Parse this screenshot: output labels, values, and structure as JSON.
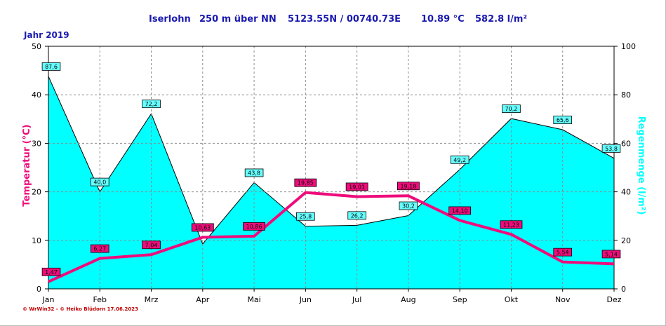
{
  "header": {
    "station": "Iserlohn",
    "elevation": "250 m über NN",
    "coordinates": "5123.55N / 00740.73E",
    "avg_temperature": "10.89 °C",
    "total_precipitation": "582.8 l/m²"
  },
  "year_label": "Jahr  2019",
  "footer": "© WrWin32  -  © Heiko Blüdorn  17.06.2023",
  "colors": {
    "temperature": "#ee0c7c",
    "precipitation_fill": "#00ffff",
    "header_text": "#1a1ab0",
    "temp_label_bg": "#ee0c7c",
    "rain_label_bg": "#66ffff"
  },
  "chart_data": {
    "type": "line",
    "categories": [
      "Jan",
      "Feb",
      "Mrz",
      "Apr",
      "Mai",
      "Jun",
      "Jul",
      "Aug",
      "Sep",
      "Okt",
      "Nov",
      "Dez"
    ],
    "series": [
      {
        "name": "Temperatur (°C)",
        "axis": "left",
        "style": "line",
        "values": [
          1.47,
          6.27,
          7.04,
          10.63,
          10.86,
          19.85,
          19.01,
          19.18,
          14.1,
          11.23,
          5.54,
          5.14
        ],
        "labels": [
          "1,47",
          "6,27",
          "7,04",
          "10,63",
          "10,86",
          "19,85",
          "19,01",
          "19,18",
          "14,10",
          "11,23",
          "5,54",
          "5,14"
        ]
      },
      {
        "name": "Regenmenge (l/m²)",
        "axis": "right",
        "style": "area",
        "values": [
          87.6,
          40.0,
          72.2,
          18.5,
          43.8,
          25.8,
          26.2,
          30.2,
          49.2,
          70.2,
          65.6,
          53.8
        ],
        "labels": [
          "87,6",
          "40,0",
          "72,2",
          "",
          "43,8",
          "25,8",
          "26,2",
          "30,2",
          "49,2",
          "70,2",
          "65,6",
          "53,8"
        ]
      }
    ],
    "ylabel": "Temperatur  (°C)",
    "y2label": "Regenmenge  (l/m²)",
    "ylim": [
      0,
      50
    ],
    "y2lim": [
      0,
      100
    ],
    "yticks": [
      0,
      10,
      20,
      30,
      40,
      50
    ],
    "y2ticks": [
      0,
      20,
      40,
      60,
      80,
      100
    ],
    "grid": true
  }
}
